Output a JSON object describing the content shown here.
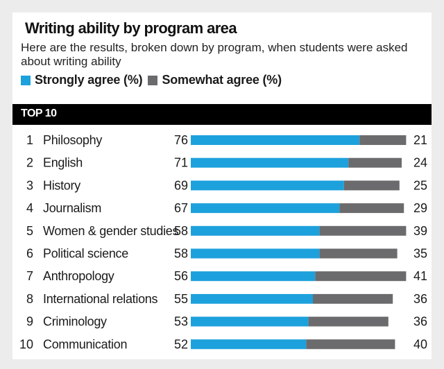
{
  "chart_data": {
    "type": "bar",
    "title": "Writing ability by program area",
    "subtitle": "Here are the results, broken down by program, when students were asked about writing ability",
    "section_label": "TOP 10",
    "ranks": [
      "1",
      "2",
      "3",
      "4",
      "5",
      "6",
      "7",
      "8",
      "9",
      "10"
    ],
    "categories": [
      "Philosophy",
      "English",
      "History",
      "Journalism",
      "Women & gender studies",
      "Political science",
      "Anthropology",
      "International relations",
      "Criminology",
      "Communication"
    ],
    "series": [
      {
        "name": "Strongly agree (%)",
        "color": "#1da1dc",
        "values": [
          76,
          71,
          69,
          67,
          58,
          58,
          56,
          55,
          53,
          52
        ]
      },
      {
        "name": "Somewhat agree (%)",
        "color": "#6b6b6d",
        "values": [
          21,
          24,
          25,
          29,
          39,
          35,
          41,
          36,
          36,
          40
        ]
      }
    ],
    "stacked": true,
    "xlim": [
      0,
      100
    ],
    "grid": false,
    "legend_position": "top-left"
  }
}
